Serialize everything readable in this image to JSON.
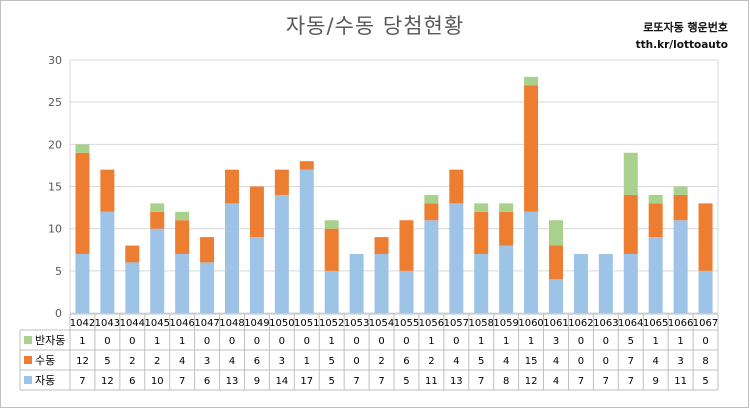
{
  "header": {
    "title": "자동/수동 당첨현황",
    "brand_name": "로또자동 행운번호",
    "brand_url": "tth.kr/lottoauto"
  },
  "chart_data": {
    "type": "bar",
    "stacked": true,
    "categories": [
      "1042",
      "1043",
      "1044",
      "1045",
      "1046",
      "1047",
      "1048",
      "1049",
      "1050",
      "1051",
      "1052",
      "1053",
      "1054",
      "1055",
      "1056",
      "1057",
      "1058",
      "1059",
      "1060",
      "1061",
      "1062",
      "1063",
      "1064",
      "1065",
      "1066",
      "1067"
    ],
    "series": [
      {
        "name": "자동",
        "color": "#9dc3e6",
        "values": [
          7,
          12,
          6,
          10,
          7,
          6,
          13,
          9,
          14,
          17,
          5,
          7,
          7,
          5,
          11,
          13,
          7,
          8,
          12,
          4,
          7,
          7,
          7,
          9,
          11,
          5
        ]
      },
      {
        "name": "수동",
        "color": "#ed7d31",
        "values": [
          12,
          5,
          2,
          2,
          4,
          3,
          4,
          6,
          3,
          1,
          5,
          0,
          2,
          6,
          2,
          4,
          5,
          4,
          15,
          4,
          0,
          0,
          7,
          4,
          3,
          8
        ]
      },
      {
        "name": "반자동",
        "color": "#a9d18e",
        "values": [
          1,
          0,
          0,
          1,
          1,
          0,
          0,
          0,
          0,
          0,
          1,
          0,
          0,
          0,
          1,
          0,
          1,
          1,
          1,
          3,
          0,
          0,
          5,
          1,
          1,
          0
        ]
      }
    ],
    "yticks": [
      "0",
      "5",
      "10",
      "15",
      "20",
      "25",
      "30"
    ],
    "ylim": [
      0,
      30
    ],
    "grid": true,
    "legend": "data-table"
  }
}
